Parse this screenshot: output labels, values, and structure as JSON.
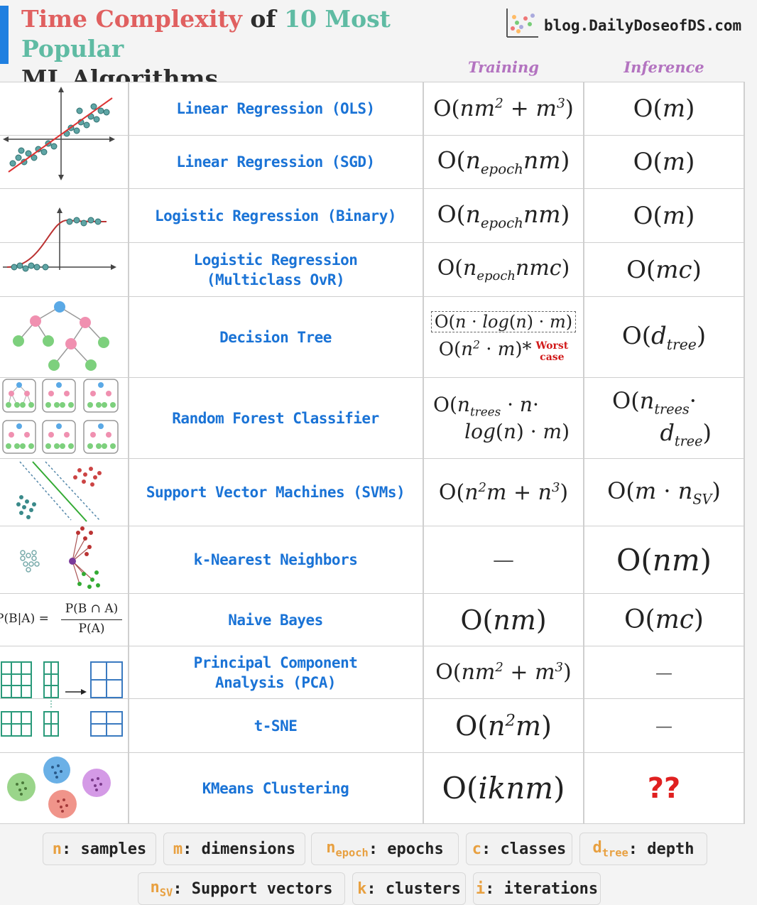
{
  "header": {
    "title_part1": "Time Complexity",
    "title_part2": "of",
    "title_part3": "10 Most Popular",
    "title_part4": "ML Algorithms",
    "blog": "blog.DailyDoseofDS.com",
    "col_training": "Training",
    "col_inference": "Inference",
    "logo_icon": "scatter-plot-icon"
  },
  "rows": [
    {
      "name": "Linear Regression (OLS)"
    },
    {
      "name": "Linear Regression (SGD)"
    },
    {
      "name": "Logistic Regression (Binary)"
    },
    {
      "name": "Logistic Regression\n(Multiclass OvR)"
    },
    {
      "name": "Decision Tree"
    },
    {
      "name": "Random Forest Classifier"
    },
    {
      "name": "Support Vector Machines (SVMs)"
    },
    {
      "name": "k-Nearest Neighbors"
    },
    {
      "name": "Naive Bayes"
    },
    {
      "name": "Principal Component\nAnalysis (PCA)"
    },
    {
      "name": "t-SNE"
    },
    {
      "name": "KMeans Clustering"
    }
  ],
  "complexity": {
    "epoch": "epoch",
    "trees": "trees",
    "tree": "tree",
    "sv": "SV",
    "dash": "—",
    "unknown": "??",
    "worst_case_1": "Worst",
    "worst_case_2": "case"
  },
  "naive_bayes_formula": {
    "lhs": "P(B|A) =",
    "numerator": "P(B ∩ A)",
    "denominator": "P(A)"
  },
  "legend": [
    {
      "sym": "n",
      "sub": "",
      "text": ": samples"
    },
    {
      "sym": "m",
      "sub": "",
      "text": ": dimensions"
    },
    {
      "sym": "n",
      "sub": "epoch",
      "text": ": epochs"
    },
    {
      "sym": "c",
      "sub": "",
      "text": ": classes"
    },
    {
      "sym": "d",
      "sub": "tree",
      "text": ": depth"
    },
    {
      "sym": "n",
      "sub": "SV",
      "text": ": Support vectors"
    },
    {
      "sym": "k",
      "sub": "",
      "text": ": clusters"
    },
    {
      "sym": "i",
      "sub": "",
      "text": ": iterations"
    }
  ],
  "colors": {
    "title_red": "#e06060",
    "title_teal": "#5fbba3",
    "algo_blue": "#1a73d6",
    "column_purple": "#b373c0",
    "legend_orange": "#e8a040",
    "accent_blue": "#1f7fe0"
  }
}
